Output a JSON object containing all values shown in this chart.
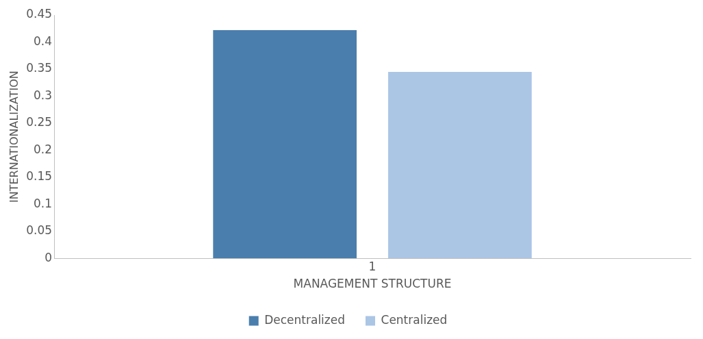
{
  "chart_data": {
    "type": "bar",
    "xlabel": "MANAGEMENT STRUCTURE",
    "ylabel": "INTERNATIONALIZATION",
    "categories": [
      "1"
    ],
    "series": [
      {
        "name": "Decentralized",
        "color": "#4a7eac",
        "values": [
          0.422
        ]
      },
      {
        "name": "Centralized",
        "color": "#abc5e5",
        "values": [
          0.345
        ]
      }
    ],
    "ylim": [
      0,
      0.45
    ],
    "yticks": [
      0,
      0.05,
      0.1,
      0.15,
      0.2,
      0.25,
      0.3,
      0.35,
      0.4,
      0.45
    ],
    "grid": false,
    "legend": "bottom"
  }
}
